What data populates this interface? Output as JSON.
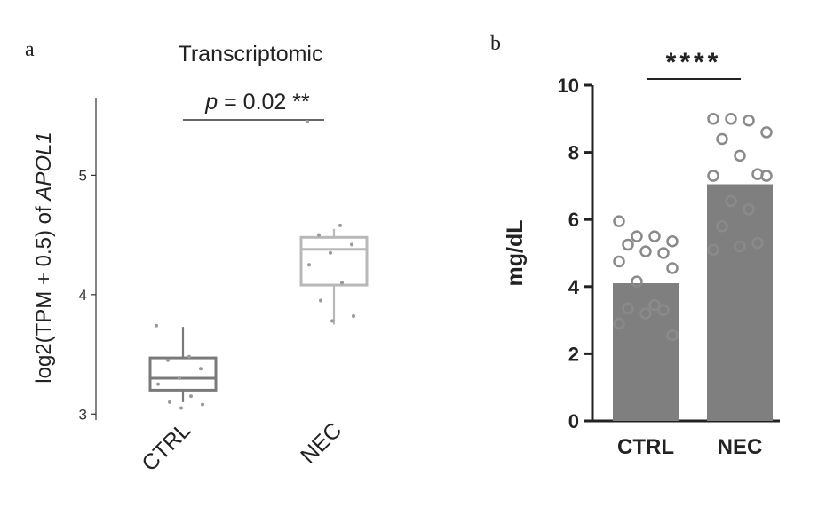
{
  "chart_data": [
    {
      "panel": "a",
      "type": "box",
      "title": "Transcriptomic",
      "ylabel_prefix": "log2(TPM + 0.5) of ",
      "ylabel_gene": "APOL1",
      "ylim": [
        2.95,
        5.65
      ],
      "yticks": [
        "3",
        "4",
        "5"
      ],
      "categories": [
        "CTRL",
        "NEC"
      ],
      "annotation_p": "p",
      "annotation_rest": " = 0.02 **",
      "boxes": [
        {
          "name": "CTRL",
          "min": 3.1,
          "q1": 3.2,
          "median": 3.3,
          "q3": 3.47,
          "max": 3.73,
          "color": "#7a7a7a",
          "points": [
            3.74,
            3.48,
            3.45,
            3.38,
            3.3,
            3.25,
            3.15,
            3.1,
            3.08,
            3.05
          ]
        },
        {
          "name": "NEC",
          "min": 3.75,
          "q1": 4.08,
          "median": 4.38,
          "q3": 4.48,
          "max": 4.55,
          "color": "#b8b8b8",
          "points": [
            5.45,
            4.58,
            4.5,
            4.42,
            4.35,
            4.25,
            4.1,
            3.95,
            3.82,
            3.78
          ]
        }
      ],
      "grid": false,
      "legend": "none"
    },
    {
      "panel": "b",
      "type": "bar",
      "ylabel": "mg/dL",
      "ylim": [
        0,
        10
      ],
      "yticks": [
        "0",
        "2",
        "4",
        "6",
        "8",
        "10"
      ],
      "categories": [
        "CTRL",
        "NEC"
      ],
      "values": [
        4.1,
        7.05
      ],
      "annotation": "****",
      "color": "#7f7f7f",
      "points": [
        [
          5.95,
          5.5,
          5.5,
          5.35,
          5.25,
          5.05,
          5.0,
          4.75,
          4.55,
          4.15,
          3.45,
          3.35,
          3.3,
          3.2,
          2.9,
          2.55
        ],
        [
          9.0,
          9.0,
          8.95,
          8.6,
          8.4,
          7.9,
          7.35,
          7.3,
          7.3,
          6.55,
          6.3,
          5.8,
          5.3,
          5.2,
          5.1
        ]
      ],
      "grid": false,
      "legend": "none"
    }
  ]
}
